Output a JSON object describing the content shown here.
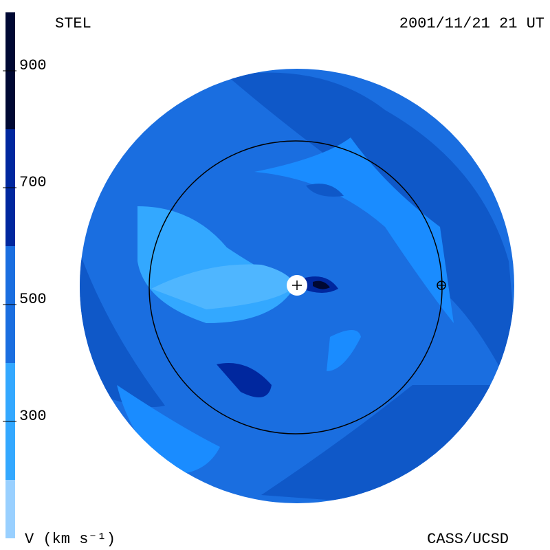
{
  "header": {
    "left": "STEL",
    "right": "2001/11/21 21 UT"
  },
  "colorbar": {
    "label": "V (km s⁻¹)",
    "lim": [
      100,
      1000
    ],
    "ticks": [
      300,
      500,
      700,
      900
    ],
    "bands": [
      {
        "from": 100,
        "to": 200,
        "color": "#99d0ff"
      },
      {
        "from": 200,
        "to": 400,
        "color": "#33a8ff"
      },
      {
        "from": 400,
        "to": 600,
        "color": "#1a6ee0"
      },
      {
        "from": 600,
        "to": 800,
        "color": "#00279e"
      },
      {
        "from": 800,
        "to": 1000,
        "color": "#000833"
      }
    ]
  },
  "footer": {
    "right": "CASS/UCSD"
  }
}
